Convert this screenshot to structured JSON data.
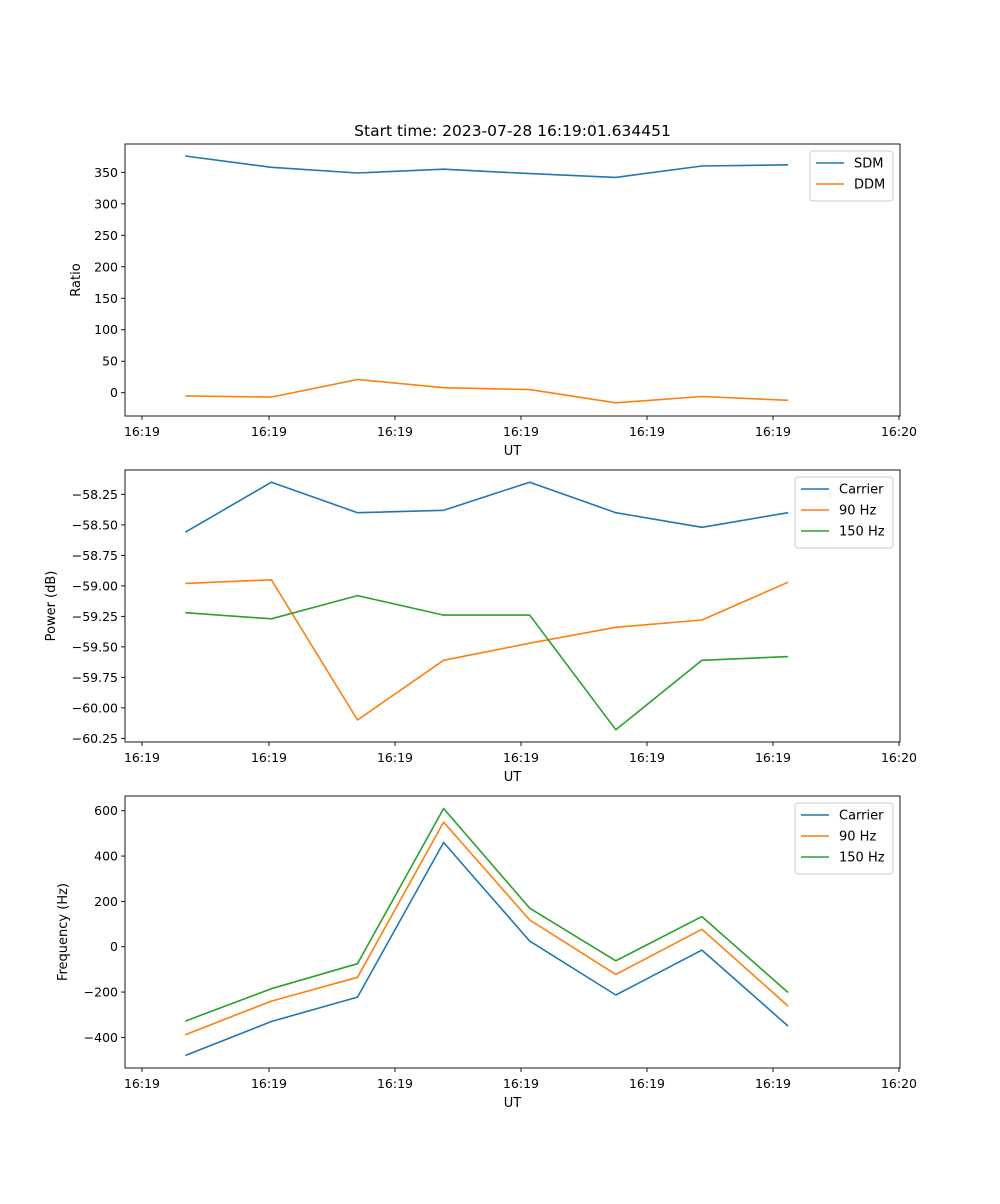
{
  "chart_data": [
    {
      "type": "line",
      "title": "Start time: 2023-07-28 16:19:01.634451",
      "xlabel": "UT",
      "ylabel": "Ratio",
      "x_tick_labels": [
        "16:19",
        "16:19",
        "16:19",
        "16:19",
        "16:19",
        "16:19",
        "16:20"
      ],
      "y_ticks": [
        0,
        50,
        100,
        150,
        200,
        250,
        300,
        350
      ],
      "y_tick_labels": [
        "0",
        "50",
        "100",
        "150",
        "200",
        "250",
        "300",
        "350"
      ],
      "xlim": [
        -0.7,
        8.3
      ],
      "ylim": [
        -37,
        395
      ],
      "x": [
        0,
        1,
        2,
        3,
        4,
        5,
        6,
        7
      ],
      "legend_position": "upper right",
      "series": [
        {
          "name": "SDM",
          "color": "#1f77b4",
          "values": [
            376,
            358,
            349,
            355,
            348,
            342,
            360,
            362
          ]
        },
        {
          "name": "DDM",
          "color": "#ff7f0e",
          "values": [
            -5,
            -7,
            21,
            8,
            5,
            -16,
            -6,
            -12
          ]
        }
      ]
    },
    {
      "type": "line",
      "title": "",
      "xlabel": "UT",
      "ylabel": "Power (dB)",
      "x_tick_labels": [
        "16:19",
        "16:19",
        "16:19",
        "16:19",
        "16:19",
        "16:19",
        "16:20"
      ],
      "y_ticks": [
        -60.25,
        -60.0,
        -59.75,
        -59.5,
        -59.25,
        -59.0,
        -58.75,
        -58.5,
        -58.25
      ],
      "y_tick_labels": [
        "−60.25",
        "−60.00",
        "−59.75",
        "−59.50",
        "−59.25",
        "−59.00",
        "−58.75",
        "−58.50",
        "−58.25"
      ],
      "xlim": [
        -0.7,
        8.3
      ],
      "ylim": [
        -60.28,
        -58.05
      ],
      "x": [
        0,
        1,
        2,
        3,
        4,
        5,
        6,
        7
      ],
      "legend_position": "upper right",
      "series": [
        {
          "name": "Carrier",
          "color": "#1f77b4",
          "values": [
            -58.56,
            -58.15,
            -58.4,
            -58.38,
            -58.15,
            -58.4,
            -58.52,
            -58.4
          ]
        },
        {
          "name": "90 Hz",
          "color": "#ff7f0e",
          "values": [
            -58.98,
            -58.95,
            -60.1,
            -59.61,
            -59.47,
            -59.34,
            -59.28,
            -58.97
          ]
        },
        {
          "name": "150 Hz",
          "color": "#2ca02c",
          "values": [
            -59.22,
            -59.27,
            -59.08,
            -59.24,
            -59.24,
            -60.18,
            -59.61,
            -59.58
          ]
        }
      ]
    },
    {
      "type": "line",
      "title": "",
      "xlabel": "UT",
      "ylabel": "Frequency (Hz)",
      "x_tick_labels": [
        "16:19",
        "16:19",
        "16:19",
        "16:19",
        "16:19",
        "16:19",
        "16:20"
      ],
      "y_ticks": [
        -400,
        -200,
        0,
        200,
        400,
        600
      ],
      "y_tick_labels": [
        "−400",
        "−200",
        "0",
        "200",
        "400",
        "600"
      ],
      "xlim": [
        -0.7,
        8.3
      ],
      "ylim": [
        -535,
        665
      ],
      "x": [
        0,
        1,
        2,
        3,
        4,
        5,
        6,
        7
      ],
      "legend_position": "upper right",
      "series": [
        {
          "name": "Carrier",
          "color": "#1f77b4",
          "values": [
            -480,
            -330,
            -222,
            460,
            25,
            -213,
            -15,
            -350
          ]
        },
        {
          "name": "90 Hz",
          "color": "#ff7f0e",
          "values": [
            -388,
            -240,
            -135,
            550,
            118,
            -122,
            77,
            -262
          ]
        },
        {
          "name": "150 Hz",
          "color": "#2ca02c",
          "values": [
            -328,
            -185,
            -75,
            610,
            170,
            -62,
            133,
            -202
          ]
        }
      ]
    }
  ]
}
